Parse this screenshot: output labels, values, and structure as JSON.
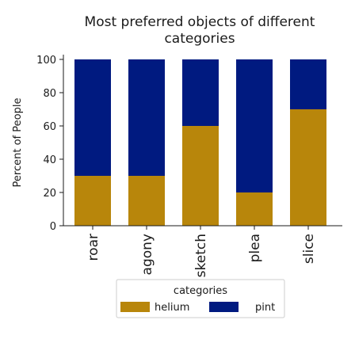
{
  "chart_data": {
    "type": "bar",
    "stacked": true,
    "title": "Most preferred objects of different categories",
    "title_lines": [
      "Most preferred objects of different",
      "categories"
    ],
    "xlabel": "",
    "ylabel": "Percent of People",
    "ylim": [
      0,
      100
    ],
    "yticks": [
      0,
      20,
      40,
      60,
      80,
      100
    ],
    "categories": [
      "roar",
      "agony",
      "sketch",
      "plea",
      "slice"
    ],
    "series": [
      {
        "name": "helium",
        "color": "#b8860b",
        "values": [
          30,
          30,
          60,
          20,
          70
        ]
      },
      {
        "name": "pint",
        "color": "#001a80",
        "values": [
          70,
          70,
          40,
          80,
          30
        ]
      }
    ],
    "legend": {
      "title": "categories",
      "position": "bottom",
      "entries": [
        "helium",
        "pint"
      ]
    },
    "grid": false
  }
}
